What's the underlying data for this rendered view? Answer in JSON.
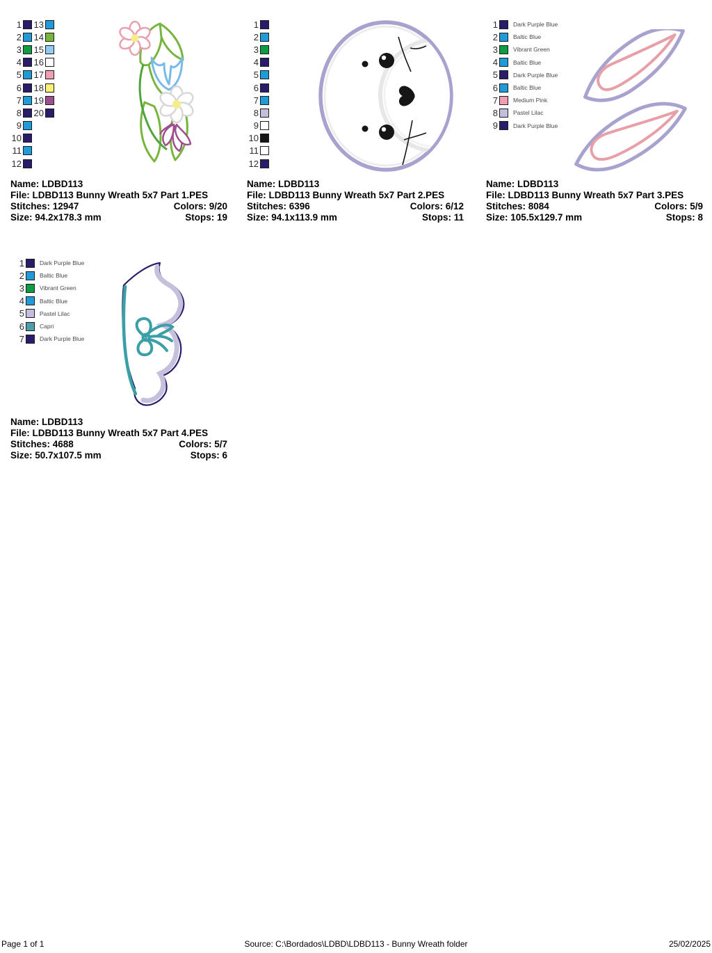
{
  "palette": {
    "dark_purple_blue": "#2A1C6A",
    "baltic_blue": "#1F9BD8",
    "vibrant_green": "#109C45",
    "pastel_lilac": "#C4BEDC",
    "medium_pink": "#EF9FB1",
    "capri": "#4C9EAE",
    "white": "#FFFFFF",
    "black": "#161616",
    "leaf_green": "#78B53F",
    "light_blue": "#8FCBF2",
    "pale_yellow": "#FBF176",
    "mauve": "#9F4F8D"
  },
  "designs": [
    {
      "id": "part1",
      "colors": [
        {
          "n": 1,
          "hex": "#2A1C6A"
        },
        {
          "n": 2,
          "hex": "#1F9BD8"
        },
        {
          "n": 3,
          "hex": "#109C45"
        },
        {
          "n": 4,
          "hex": "#2A1C6A"
        },
        {
          "n": 5,
          "hex": "#1F9BD8"
        },
        {
          "n": 6,
          "hex": "#2A1C6A"
        },
        {
          "n": 7,
          "hex": "#1F9BD8"
        },
        {
          "n": 8,
          "hex": "#2A1C6A"
        },
        {
          "n": 9,
          "hex": "#1F9BD8"
        },
        {
          "n": 10,
          "hex": "#2A1C6A"
        },
        {
          "n": 11,
          "hex": "#1F9BD8"
        },
        {
          "n": 12,
          "hex": "#2A1C6A"
        },
        {
          "n": 13,
          "hex": "#1F9BD8"
        },
        {
          "n": 14,
          "hex": "#78B53F"
        },
        {
          "n": 15,
          "hex": "#8FCBF2"
        },
        {
          "n": 16,
          "hex": "#FFFFFF"
        },
        {
          "n": 17,
          "hex": "#EF9FB1"
        },
        {
          "n": 18,
          "hex": "#FBF176"
        },
        {
          "n": 19,
          "hex": "#9F4F8D"
        },
        {
          "n": 20,
          "hex": "#2A1C6A"
        }
      ],
      "info": {
        "name_label": "Name:",
        "name_value": "LDBD113",
        "file_label": "File:",
        "file_value": "LDBD113 Bunny Wreath 5x7 Part 1.PES",
        "stitches_label": "Stitches:",
        "stitches_value": "12947",
        "colors_label": "Colors:",
        "colors_value": "9/20",
        "size_label": "Size:",
        "size_value": "94.2x178.3 mm",
        "stops_label": "Stops:",
        "stops_value": "19"
      }
    },
    {
      "id": "part2",
      "colors": [
        {
          "n": 1,
          "hex": "#2A1C6A"
        },
        {
          "n": 2,
          "hex": "#1F9BD8"
        },
        {
          "n": 3,
          "hex": "#109C45"
        },
        {
          "n": 4,
          "hex": "#2A1C6A"
        },
        {
          "n": 5,
          "hex": "#1F9BD8"
        },
        {
          "n": 6,
          "hex": "#2A1C6A"
        },
        {
          "n": 7,
          "hex": "#1F9BD8"
        },
        {
          "n": 8,
          "hex": "#C4BEDC"
        },
        {
          "n": 9,
          "hex": "#FFFFFF"
        },
        {
          "n": 10,
          "hex": "#161616"
        },
        {
          "n": 11,
          "hex": "#FFFFFF"
        },
        {
          "n": 12,
          "hex": "#2A1C6A"
        }
      ],
      "info": {
        "name_label": "Name:",
        "name_value": "LDBD113",
        "file_label": "File:",
        "file_value": "LDBD113 Bunny Wreath 5x7 Part 2.PES",
        "stitches_label": "Stitches:",
        "stitches_value": "6396",
        "colors_label": "Colors:",
        "colors_value": "6/12",
        "size_label": "Size:",
        "size_value": "94.1x113.9 mm",
        "stops_label": "Stops:",
        "stops_value": "11"
      }
    },
    {
      "id": "part3",
      "colors": [
        {
          "n": 1,
          "hex": "#2A1C6A",
          "name": "Dark Purple Blue"
        },
        {
          "n": 2,
          "hex": "#1F9BD8",
          "name": "Baltic Blue"
        },
        {
          "n": 3,
          "hex": "#109C45",
          "name": "Vibrant Green"
        },
        {
          "n": 4,
          "hex": "#1F9BD8",
          "name": "Baltic Blue"
        },
        {
          "n": 5,
          "hex": "#2A1C6A",
          "name": "Dark Purple Blue"
        },
        {
          "n": 6,
          "hex": "#1F9BD8",
          "name": "Baltic Blue"
        },
        {
          "n": 7,
          "hex": "#EF9FB1",
          "name": "Medium Pink"
        },
        {
          "n": 8,
          "hex": "#C4BEDC",
          "name": "Pastel Lilac"
        },
        {
          "n": 9,
          "hex": "#2A1C6A",
          "name": "Dark Purple Blue"
        }
      ],
      "info": {
        "name_label": "Name:",
        "name_value": "LDBD113",
        "file_label": "File:",
        "file_value": "LDBD113 Bunny Wreath 5x7 Part 3.PES",
        "stitches_label": "Stitches:",
        "stitches_value": "8084",
        "colors_label": "Colors:",
        "colors_value": "5/9",
        "size_label": "Size:",
        "size_value": "105.5x129.7 mm",
        "stops_label": "Stops:",
        "stops_value": "8"
      }
    },
    {
      "id": "part4",
      "colors": [
        {
          "n": 1,
          "hex": "#2A1C6A",
          "name": "Dark Purple Blue"
        },
        {
          "n": 2,
          "hex": "#1F9BD8",
          "name": "Baltic Blue"
        },
        {
          "n": 3,
          "hex": "#109C45",
          "name": "Vibrant Green"
        },
        {
          "n": 4,
          "hex": "#1F9BD8",
          "name": "Baltic Blue"
        },
        {
          "n": 5,
          "hex": "#C4BEDC",
          "name": "Pastel Lilac"
        },
        {
          "n": 6,
          "hex": "#4C9EAE",
          "name": "Capri"
        },
        {
          "n": 7,
          "hex": "#2A1C6A",
          "name": "Dark Purple Blue"
        }
      ],
      "info": {
        "name_label": "Name:",
        "name_value": "LDBD113",
        "file_label": "File:",
        "file_value": "LDBD113 Bunny Wreath 5x7 Part 4.PES",
        "stitches_label": "Stitches:",
        "stitches_value": "4688",
        "colors_label": "Colors:",
        "colors_value": "5/7",
        "size_label": "Size:",
        "size_value": "50.7x107.5 mm",
        "stops_label": "Stops:",
        "stops_value": "6"
      }
    }
  ],
  "footer": {
    "page_label": "Page 1 of 1",
    "source_label": "Source: C:\\Bordados\\LDBD\\LDBD113 - Bunny Wreath folder",
    "date": "25/02/2025"
  }
}
